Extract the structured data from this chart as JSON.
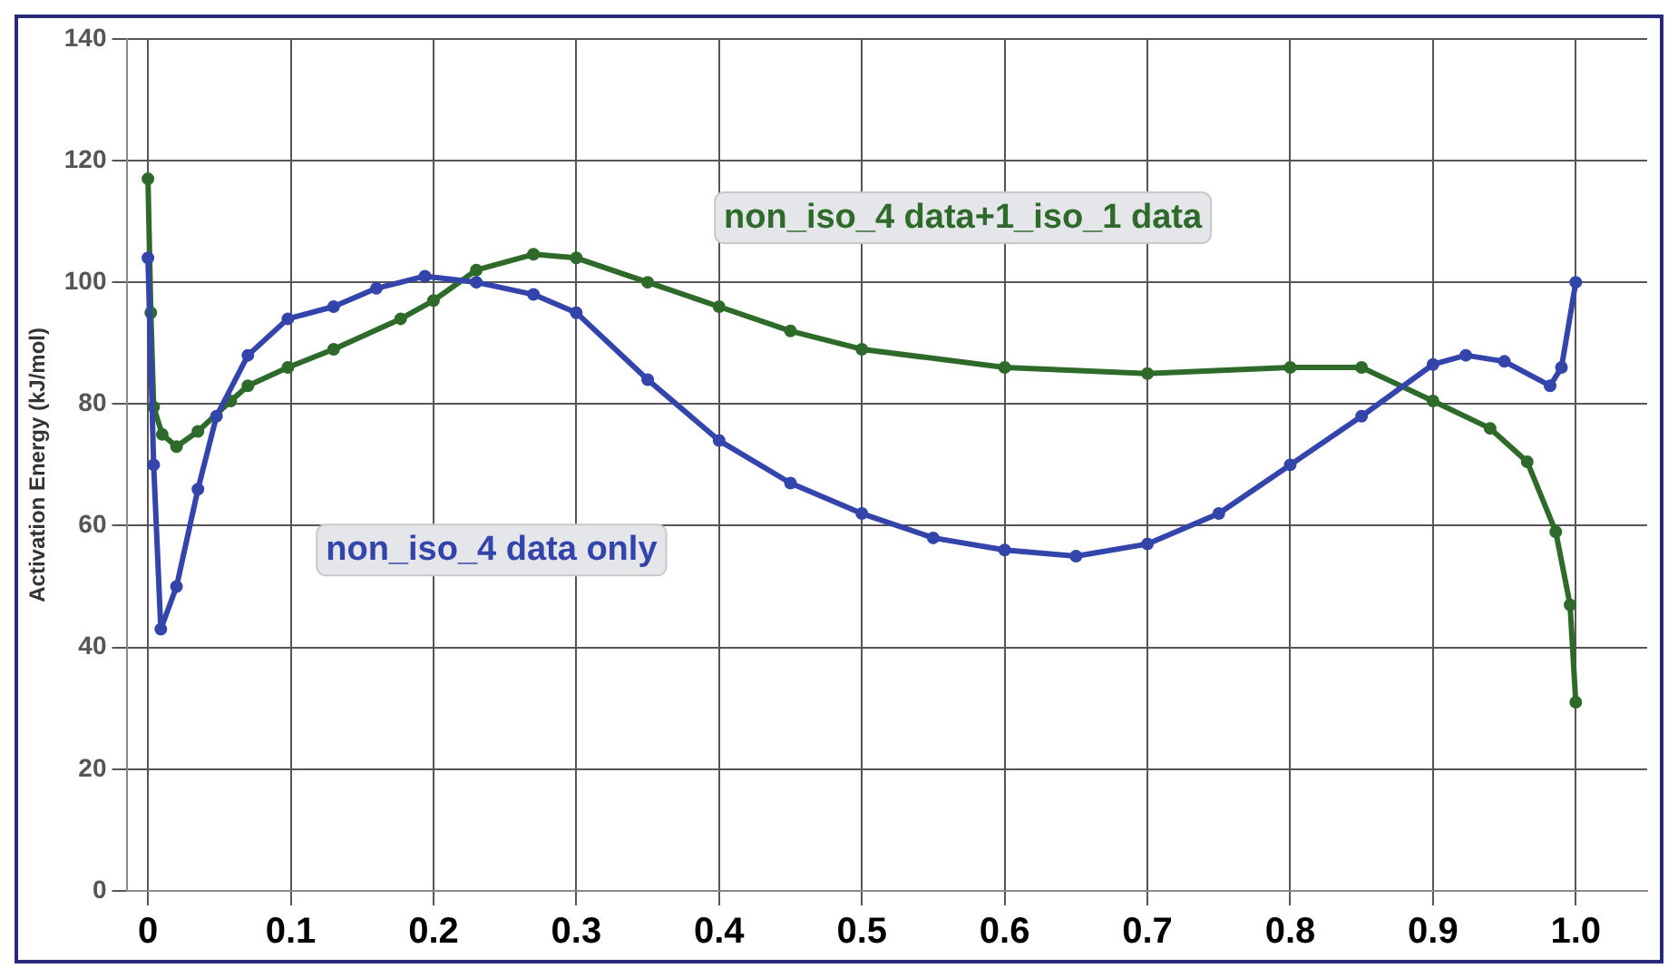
{
  "chart_data": {
    "type": "line",
    "ylabel": "Activation Energy (kJ/mol)",
    "xlim": [
      -0.015,
      1.05
    ],
    "ylim": [
      0,
      140
    ],
    "xticks": [
      0,
      0.1,
      0.2,
      0.3,
      0.4,
      0.5,
      0.6,
      0.7,
      0.8,
      0.9,
      {
        "value": 1,
        "label": "1.0"
      }
    ],
    "yticks": [
      0,
      20,
      40,
      60,
      80,
      100,
      120,
      140
    ],
    "grid": true,
    "legend": false,
    "marker": "circle",
    "line_style": "solid",
    "series": [
      {
        "name": "non_iso_4 data only",
        "color": "#3344aa",
        "x": [
          0,
          0.004,
          0.009,
          0.02,
          0.035,
          0.048,
          0.07,
          0.098,
          0.13,
          0.16,
          0.194,
          0.23,
          0.27,
          0.3,
          0.35,
          0.4,
          0.45,
          0.5,
          0.55,
          0.6,
          0.65,
          0.7,
          0.75,
          0.8,
          0.85,
          0.9,
          0.923,
          0.95,
          0.982,
          0.99,
          1.0
        ],
        "values": [
          104,
          70,
          43,
          50,
          66,
          78,
          88,
          94,
          96,
          99,
          101,
          100,
          98,
          95,
          84,
          74,
          67,
          62,
          58,
          56,
          55,
          57,
          62,
          70,
          78,
          86.5,
          88,
          87,
          83,
          86,
          100
        ]
      },
      {
        "name": "non_iso_4 data+1_iso_1 data",
        "color": "#2e6b2a",
        "x": [
          0,
          0.002,
          0.004,
          0.01,
          0.02,
          0.035,
          0.058,
          0.07,
          0.098,
          0.13,
          0.177,
          0.2,
          0.23,
          0.27,
          0.3,
          0.35,
          0.4,
          0.45,
          0.5,
          0.6,
          0.7,
          0.8,
          0.85,
          0.9,
          0.94,
          0.966,
          0.986,
          0.996,
          1.0
        ],
        "values": [
          117,
          95,
          79.5,
          75,
          73,
          75.5,
          80.5,
          83,
          86,
          89,
          94,
          97,
          102,
          104.6,
          104,
          100,
          96,
          92,
          89,
          86,
          85,
          86,
          86,
          80.5,
          76,
          70.5,
          59,
          47,
          31
        ]
      }
    ]
  }
}
